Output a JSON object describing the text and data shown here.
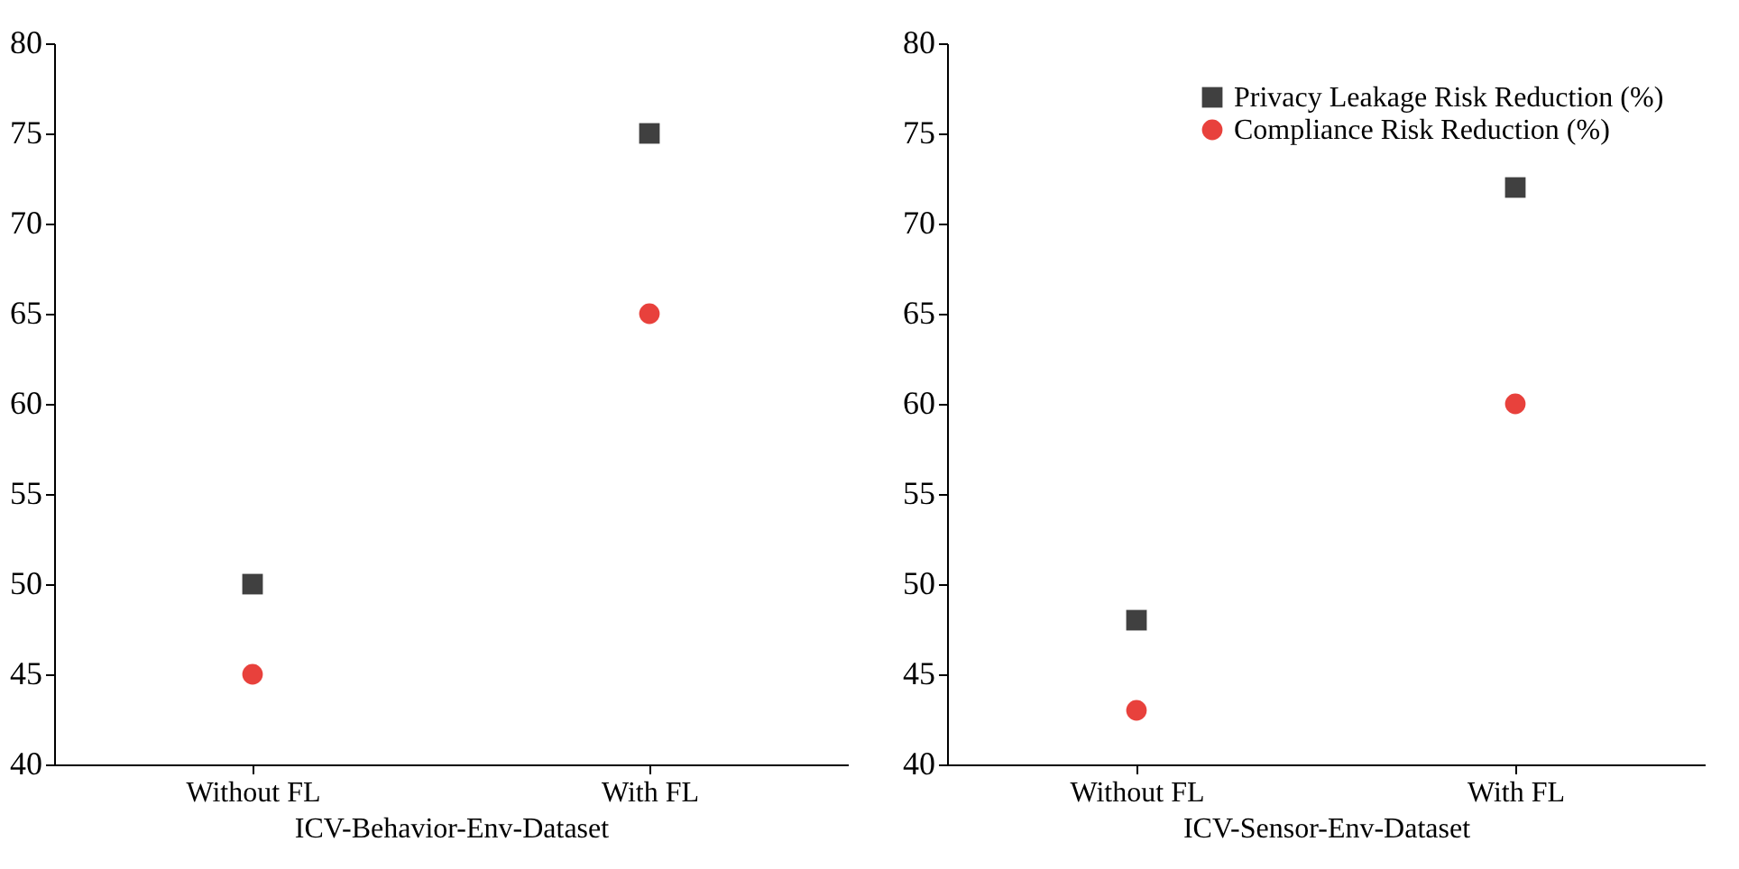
{
  "chart_data": [
    {
      "type": "scatter",
      "xlabel": "ICV-Behavior-Env-Dataset",
      "categories": [
        "Without FL",
        "With FL"
      ],
      "ylim": [
        40,
        80
      ],
      "yticks": [
        40,
        45,
        50,
        55,
        60,
        65,
        70,
        75,
        80
      ],
      "grid": false,
      "series": [
        {
          "color": "#404040",
          "marker": "square",
          "values": [
            50,
            75
          ]
        },
        {
          "color": "#e8413c",
          "marker": "circle",
          "values": [
            45,
            65
          ]
        }
      ]
    },
    {
      "type": "scatter",
      "xlabel": "ICV-Sensor-Env-Dataset",
      "categories": [
        "Without FL",
        "With FL"
      ],
      "ylim": [
        40,
        80
      ],
      "yticks": [
        40,
        45,
        50,
        55,
        60,
        65,
        70,
        75,
        80
      ],
      "grid": false,
      "legend": "top right",
      "series": [
        {
          "name": "Privacy Leakage Risk Reduction (%)",
          "color": "#404040",
          "marker": "square",
          "values": [
            48,
            72
          ]
        },
        {
          "name": "Compliance Risk Reduction (%)",
          "color": "#e8413c",
          "marker": "circle",
          "values": [
            43,
            60
          ]
        }
      ]
    }
  ]
}
